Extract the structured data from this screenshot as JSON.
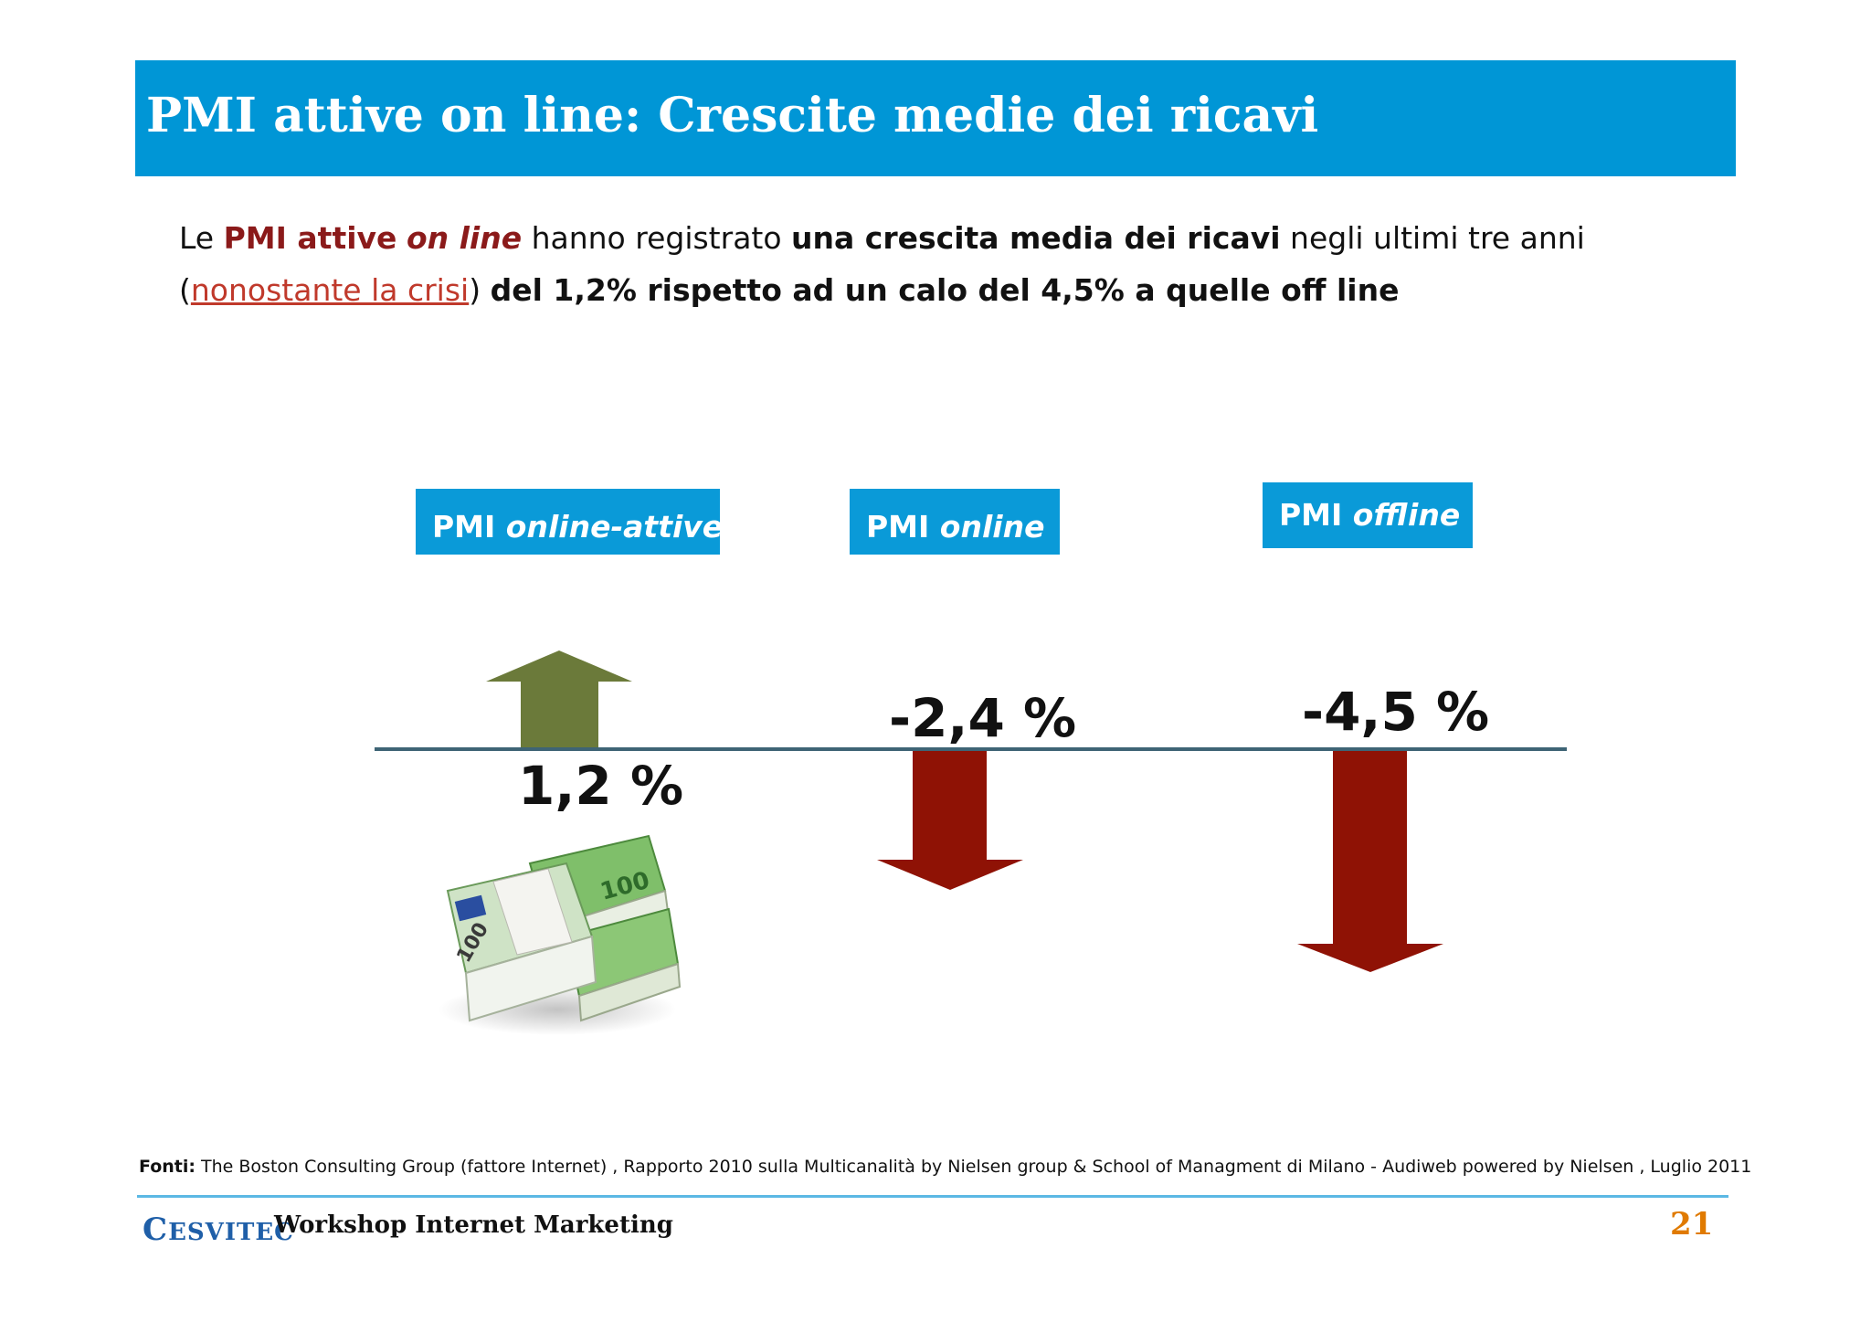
{
  "title": "PMI attive on line: Crescite medie dei ricavi",
  "intro": {
    "p1": "Le ",
    "p2": "PMI attive",
    "p3": " ",
    "p4": "on line",
    "p5": " hanno registrato ",
    "p6": "una crescita media dei ricavi",
    "p7": " negli ultimi tre anni (",
    "p8": "nonostante la crisi",
    "p9": ") ",
    "p10": "del 1,2% rispetto ad un calo del 4,5% a quelle off line"
  },
  "categories": [
    {
      "prefix": "PMI ",
      "name": "online-attive",
      "value": "1,2 %",
      "direction": "up"
    },
    {
      "prefix": "PMI ",
      "name": "online",
      "value": "-2,4 %",
      "direction": "down"
    },
    {
      "prefix": "PMI ",
      "name": "offline",
      "value": "-4,5 %",
      "direction": "down"
    }
  ],
  "colors": {
    "header": "#0096d6",
    "box": "#0a9ad8",
    "up_arrow": "#6b7a3a",
    "down_arrow": "#8f1205",
    "page_number": "#e07a00"
  },
  "image": "euro-banknotes-stack",
  "sources": {
    "label": "Fonti:",
    "text": " The Boston Consulting Group (fattore Internet) , Rapporto 2010 sulla Multicanalità by Nielsen group & School of Managment di Milano -  Audiweb powered by Nielsen , Luglio 2011"
  },
  "footer": {
    "logo": "ESVITEC",
    "logo_initial": "C",
    "workshop": "Workshop Internet Marketing",
    "page": "21"
  }
}
